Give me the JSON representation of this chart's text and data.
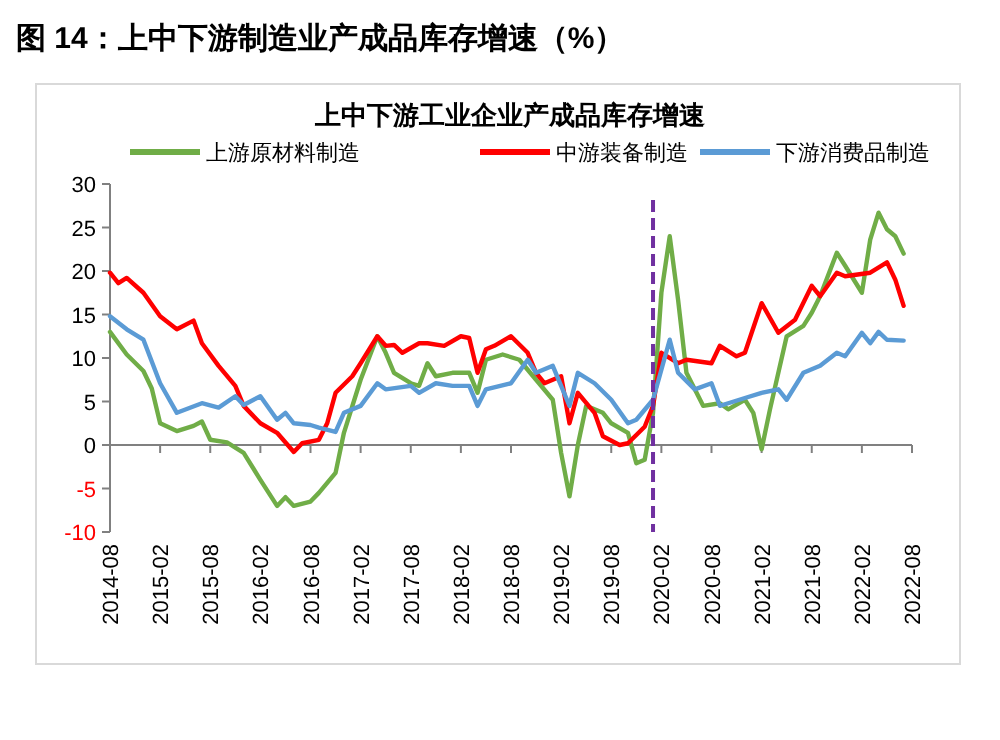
{
  "chart_data": {
    "type": "line",
    "title": "图 14：上中下游制造业产成品库存增速（%）",
    "subtitle": "上中下游工业企业产成品库存增速",
    "xlim": [
      "2014-08",
      "2022-08"
    ],
    "xticks": [
      "2014-08",
      "2015-02",
      "2015-08",
      "2016-02",
      "2016-08",
      "2017-02",
      "2017-08",
      "2018-02",
      "2018-08",
      "2019-02",
      "2019-08",
      "2020-02",
      "2020-08",
      "2021-02",
      "2021-08",
      "2022-02",
      "2022-08"
    ],
    "ylim": [
      -10,
      30
    ],
    "yticks": [
      -10,
      -5,
      0,
      5,
      10,
      15,
      20,
      25,
      30
    ],
    "legend": "top",
    "marker": "none",
    "line_style": "solid",
    "ref_lines": [
      {
        "axis": "x",
        "value": "2020-01",
        "color": "#7030a0",
        "line_style": "dashed"
      }
    ],
    "series": [
      {
        "name": "上游原材料制造",
        "color": "#70ad47",
        "x": [
          "2014-08",
          "2014-10",
          "2014-12",
          "2015-01",
          "2015-02",
          "2015-04",
          "2015-06",
          "2015-07",
          "2015-08",
          "2015-10",
          "2015-12",
          "2016-02",
          "2016-04",
          "2016-05",
          "2016-06",
          "2016-08",
          "2016-09",
          "2016-11",
          "2016-12",
          "2017-02",
          "2017-04",
          "2017-05",
          "2017-06",
          "2017-08",
          "2017-09",
          "2017-10",
          "2017-11",
          "2018-01",
          "2018-03",
          "2018-04",
          "2018-05",
          "2018-07",
          "2018-09",
          "2018-11",
          "2019-01",
          "2019-02",
          "2019-03",
          "2019-04",
          "2019-05",
          "2019-07",
          "2019-08",
          "2019-10",
          "2019-11",
          "2019-12",
          "2020-01",
          "2020-02",
          "2020-03",
          "2020-04",
          "2020-05",
          "2020-07",
          "2020-09",
          "2020-10",
          "2020-12",
          "2021-01",
          "2021-02",
          "2021-03",
          "2021-05",
          "2021-07",
          "2021-08",
          "2021-09",
          "2021-11",
          "2021-12",
          "2022-02",
          "2022-03",
          "2022-04",
          "2022-05",
          "2022-06",
          "2022-07"
        ],
        "values": [
          13,
          10.4,
          8.5,
          6.5,
          2.5,
          1.6,
          2.2,
          2.7,
          0.6,
          0.3,
          -0.9,
          -4,
          -7,
          -6,
          -7,
          -6.5,
          -5.5,
          -3.2,
          1.4,
          7.5,
          12.5,
          10.6,
          8.3,
          7.1,
          6.8,
          9.4,
          7.9,
          8.3,
          8.3,
          6,
          9.8,
          10.4,
          9.8,
          7.5,
          5.2,
          -0.9,
          -5.9,
          0,
          4.5,
          3.7,
          2.5,
          1.4,
          -2.1,
          -1.7,
          3.7,
          17.5,
          24,
          16.7,
          8.3,
          4.5,
          4.8,
          4.1,
          5.2,
          3.7,
          -0.5,
          4.1,
          12.5,
          13.7,
          15.2,
          17.1,
          22.1,
          20.6,
          17.5,
          23.6,
          26.7,
          24.8,
          24,
          22
        ]
      },
      {
        "name": "中游装备制造",
        "color": "#ff0000",
        "x": [
          "2014-08",
          "2014-09",
          "2014-10",
          "2014-12",
          "2015-02",
          "2015-04",
          "2015-06",
          "2015-07",
          "2015-09",
          "2015-11",
          "2015-12",
          "2016-02",
          "2016-04",
          "2016-06",
          "2016-07",
          "2016-09",
          "2016-10",
          "2016-11",
          "2017-01",
          "2017-02",
          "2017-04",
          "2017-05",
          "2017-06",
          "2017-07",
          "2017-09",
          "2017-10",
          "2017-12",
          "2018-02",
          "2018-03",
          "2018-04",
          "2018-05",
          "2018-06",
          "2018-08",
          "2018-10",
          "2018-11",
          "2018-12",
          "2019-02",
          "2019-03",
          "2019-04",
          "2019-06",
          "2019-07",
          "2019-09",
          "2019-10",
          "2019-12",
          "2020-01",
          "2020-02",
          "2020-04",
          "2020-05",
          "2020-08",
          "2020-09",
          "2020-11",
          "2020-12",
          "2021-02",
          "2021-04",
          "2021-06",
          "2021-08",
          "2021-09",
          "2021-11",
          "2021-12",
          "2022-03",
          "2022-05",
          "2022-06",
          "2022-07"
        ],
        "values": [
          19.8,
          18.6,
          19.2,
          17.5,
          14.8,
          13.3,
          14.3,
          11.7,
          9.1,
          6.8,
          4.5,
          2.5,
          1.4,
          -0.8,
          0.2,
          0.6,
          2.5,
          6,
          7.9,
          9.4,
          12.5,
          11.4,
          11.5,
          10.6,
          11.7,
          11.7,
          11.4,
          12.5,
          12.3,
          8.3,
          11,
          11.4,
          12.5,
          10.6,
          8.3,
          7.1,
          7.9,
          2.5,
          6,
          3.7,
          1,
          0,
          0.2,
          2.1,
          4.5,
          10.6,
          9.4,
          9.8,
          9.4,
          11.4,
          10.2,
          10.6,
          16.3,
          12.9,
          14.4,
          18.3,
          17.1,
          19.8,
          19.4,
          19.8,
          21,
          19,
          16
        ]
      },
      {
        "name": "下游消费品制造",
        "color": "#5b9bd5",
        "x": [
          "2014-08",
          "2014-10",
          "2014-12",
          "2015-02",
          "2015-04",
          "2015-07",
          "2015-09",
          "2015-11",
          "2015-12",
          "2016-02",
          "2016-04",
          "2016-05",
          "2016-06",
          "2016-08",
          "2016-09",
          "2016-11",
          "2016-12",
          "2017-02",
          "2017-04",
          "2017-05",
          "2017-08",
          "2017-09",
          "2017-11",
          "2018-01",
          "2018-03",
          "2018-04",
          "2018-05",
          "2018-08",
          "2018-10",
          "2018-11",
          "2019-01",
          "2019-03",
          "2019-04",
          "2019-06",
          "2019-08",
          "2019-10",
          "2019-11",
          "2020-01",
          "2020-03",
          "2020-04",
          "2020-06",
          "2020-08",
          "2020-09",
          "2020-10",
          "2020-12",
          "2021-02",
          "2021-04",
          "2021-05",
          "2021-07",
          "2021-09",
          "2021-11",
          "2021-12",
          "2022-02",
          "2022-03",
          "2022-04",
          "2022-05",
          "2022-07"
        ],
        "values": [
          14.8,
          13.3,
          12.1,
          7.1,
          3.7,
          4.8,
          4.3,
          5.6,
          4.6,
          5.6,
          2.9,
          3.7,
          2.5,
          2.3,
          2,
          1.5,
          3.7,
          4.5,
          7.1,
          6.4,
          6.8,
          6,
          7.1,
          6.8,
          6.8,
          4.5,
          6.4,
          7.1,
          9.8,
          8.3,
          9.1,
          4.5,
          8.3,
          7.1,
          5.2,
          2.5,
          2.9,
          5.2,
          12.1,
          8.3,
          6.4,
          7.1,
          4.5,
          4.8,
          5.4,
          6,
          6.4,
          5.2,
          8.3,
          9.1,
          10.6,
          10.2,
          12.9,
          11.7,
          13,
          12.1,
          12
        ]
      }
    ]
  }
}
